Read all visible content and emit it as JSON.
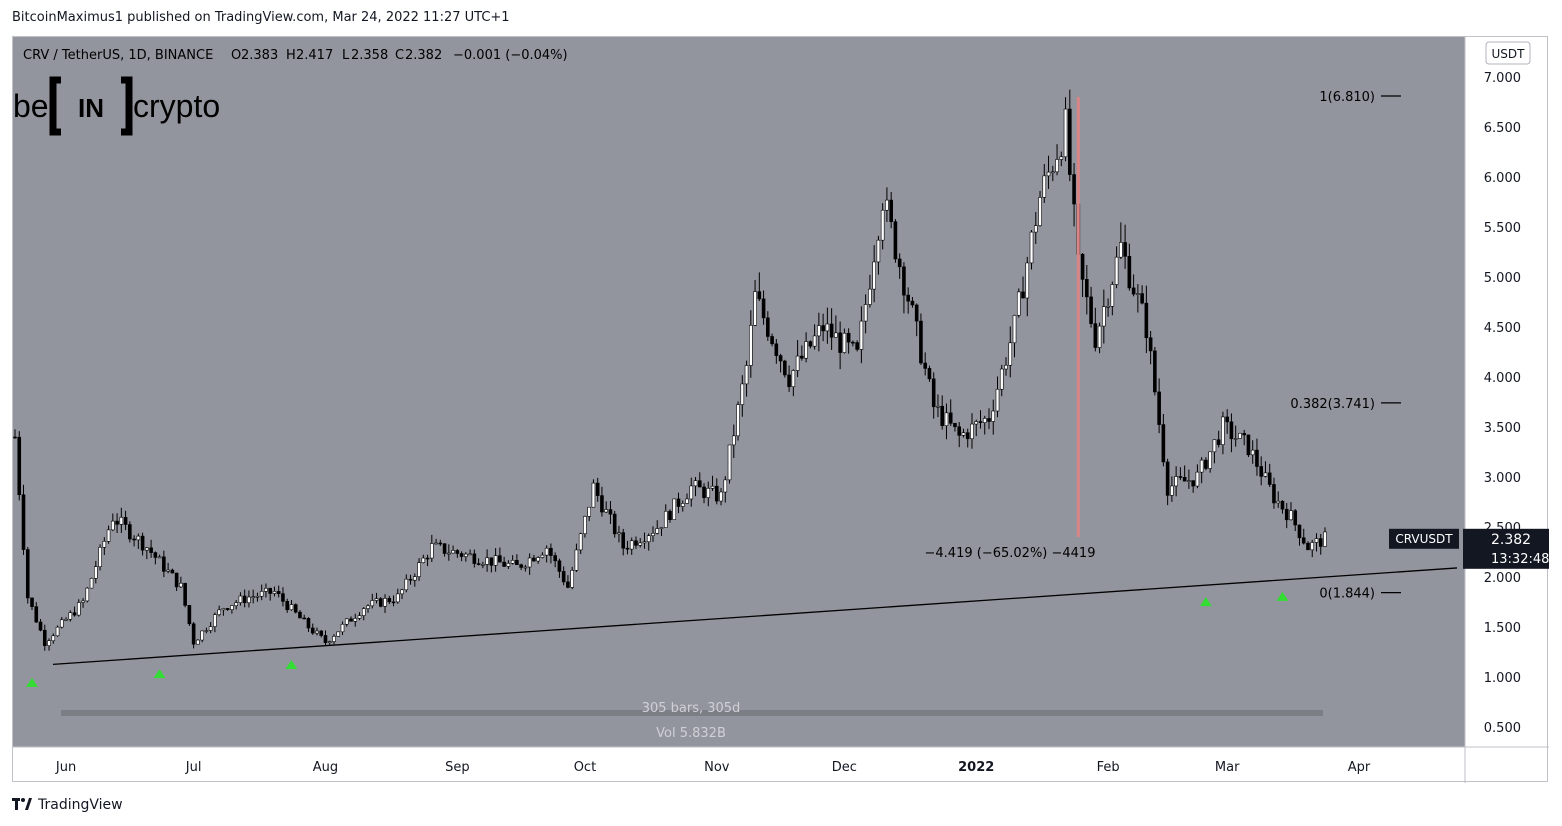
{
  "publisher_line": "BitcoinMaximus1 published on TradingView.com, Mar 24, 2022 11:27 UTC+1",
  "footer": {
    "logo_icon": "tradingview-logo-icon",
    "brand": "TradingView"
  },
  "logo": {
    "left": "be",
    "mid": "IN",
    "right": "crypto"
  },
  "colors": {
    "background": "#93959e",
    "candle_up": "#ffffff",
    "candle_down": "#000000",
    "wick": "#000000",
    "support_line": "#000000",
    "arrow": "#33dd33",
    "red_line": "#d98585",
    "price_label_bg": "#131722",
    "price_label_text": "#ffffff"
  },
  "legend": {
    "symbol": "CRV / TetherUS, 1D, BINANCE",
    "o_label": "O",
    "o": "2.383",
    "h_label": "H",
    "h": "2.417",
    "l_label": "L",
    "l": "2.358",
    "c_label": "C",
    "c": "2.382",
    "change": "−0.001 (−0.04%)"
  },
  "currency_badge": "USDT",
  "price_label": {
    "symbol": "CRVUSDT",
    "price": "2.382",
    "countdown": "13:32:48"
  },
  "stats": {
    "bars": "305 bars, 305d",
    "volume": "Vol 5.832B"
  },
  "measure_label": "−4.419 (−65.02%) −4419",
  "fib_labels": [
    {
      "label": "1(6.810)",
      "value": 6.81
    },
    {
      "label": "0.382(3.741)",
      "value": 3.741
    },
    {
      "label": "0(1.844)",
      "value": 1.844
    }
  ],
  "chart_data": {
    "type": "candlestick",
    "symbol": "CRVUSDT",
    "interval": "1D",
    "exchange": "BINANCE",
    "ylim": [
      0.3,
      7.4
    ],
    "scale": "linear",
    "grid": false,
    "y_ticks": [
      "0.500",
      "1.000",
      "1.500",
      "2.000",
      "2.500",
      "3.000",
      "3.500",
      "4.000",
      "4.500",
      "5.000",
      "5.500",
      "6.000",
      "6.500",
      "7.000"
    ],
    "y_tick_values": [
      0.5,
      1.0,
      1.5,
      2.0,
      2.5,
      3.0,
      3.5,
      4.0,
      4.5,
      5.0,
      5.5,
      6.0,
      6.5,
      7.0
    ],
    "x_ticks": [
      {
        "label": "Jun",
        "date": "2021-06-01"
      },
      {
        "label": "Jul",
        "date": "2021-07-01"
      },
      {
        "label": "Aug",
        "date": "2021-08-01"
      },
      {
        "label": "Sep",
        "date": "2021-09-01"
      },
      {
        "label": "Oct",
        "date": "2021-10-01"
      },
      {
        "label": "Nov",
        "date": "2021-11-01"
      },
      {
        "label": "Dec",
        "date": "2021-12-01"
      },
      {
        "label": "2022",
        "date": "2022-01-01",
        "bold": true
      },
      {
        "label": "Feb",
        "date": "2022-02-01"
      },
      {
        "label": "Mar",
        "date": "2022-03-01"
      },
      {
        "label": "Apr",
        "date": "2022-04-01"
      }
    ],
    "date_range": [
      "2021-05-20",
      "2022-03-24"
    ],
    "close_path": [
      {
        "date": "2021-05-20",
        "close": 3.4
      },
      {
        "date": "2021-05-23",
        "close": 1.8
      },
      {
        "date": "2021-05-27",
        "close": 1.35
      },
      {
        "date": "2021-06-05",
        "close": 1.75
      },
      {
        "date": "2021-06-12",
        "close": 2.6
      },
      {
        "date": "2021-06-20",
        "close": 2.3
      },
      {
        "date": "2021-06-28",
        "close": 1.9
      },
      {
        "date": "2021-07-01",
        "close": 1.35
      },
      {
        "date": "2021-07-08",
        "close": 1.7
      },
      {
        "date": "2021-07-14",
        "close": 1.8
      },
      {
        "date": "2021-07-20",
        "close": 1.85
      },
      {
        "date": "2021-07-28",
        "close": 1.5
      },
      {
        "date": "2021-08-01",
        "close": 1.35
      },
      {
        "date": "2021-08-10",
        "close": 1.7
      },
      {
        "date": "2021-08-18",
        "close": 1.8
      },
      {
        "date": "2021-08-26",
        "close": 2.3
      },
      {
        "date": "2021-09-05",
        "close": 2.2
      },
      {
        "date": "2021-09-15",
        "close": 2.1
      },
      {
        "date": "2021-09-22",
        "close": 2.3
      },
      {
        "date": "2021-09-27",
        "close": 1.9
      },
      {
        "date": "2021-10-03",
        "close": 2.9
      },
      {
        "date": "2021-10-10",
        "close": 2.3
      },
      {
        "date": "2021-10-18",
        "close": 2.5
      },
      {
        "date": "2021-10-26",
        "close": 2.9
      },
      {
        "date": "2021-11-02",
        "close": 2.8
      },
      {
        "date": "2021-11-08",
        "close": 4.1
      },
      {
        "date": "2021-11-10",
        "close": 4.8
      },
      {
        "date": "2021-11-18",
        "close": 4.0
      },
      {
        "date": "2021-11-26",
        "close": 4.5
      },
      {
        "date": "2021-12-04",
        "close": 4.2
      },
      {
        "date": "2021-12-10",
        "close": 5.8
      },
      {
        "date": "2021-12-16",
        "close": 4.8
      },
      {
        "date": "2021-12-22",
        "close": 3.7
      },
      {
        "date": "2021-12-28",
        "close": 3.4
      },
      {
        "date": "2022-01-04",
        "close": 3.6
      },
      {
        "date": "2022-01-10",
        "close": 4.5
      },
      {
        "date": "2022-01-16",
        "close": 5.8
      },
      {
        "date": "2022-01-22",
        "close": 6.5
      },
      {
        "date": "2022-01-25",
        "close": 5.1
      },
      {
        "date": "2022-01-29",
        "close": 4.4
      },
      {
        "date": "2022-02-04",
        "close": 5.3
      },
      {
        "date": "2022-02-10",
        "close": 4.5
      },
      {
        "date": "2022-02-15",
        "close": 2.9
      },
      {
        "date": "2022-02-22",
        "close": 3.0
      },
      {
        "date": "2022-02-28",
        "close": 3.5
      },
      {
        "date": "2022-03-06",
        "close": 3.3
      },
      {
        "date": "2022-03-12",
        "close": 2.8
      },
      {
        "date": "2022-03-16",
        "close": 2.6
      },
      {
        "date": "2022-03-20",
        "close": 2.3
      },
      {
        "date": "2022-03-24",
        "close": 2.382
      }
    ],
    "support_line": [
      {
        "date": "2021-05-20",
        "value": 1.1
      },
      {
        "date": "2022-03-24",
        "value": 2.0
      }
    ],
    "bounce_markers": [
      "2021-05-24",
      "2021-06-23",
      "2021-07-24",
      "2022-02-24",
      "2022-03-14"
    ],
    "vertical_marker_date": "2022-01-25",
    "fib_levels": [
      {
        "ratio": 1.0,
        "value": 6.81
      },
      {
        "ratio": 0.382,
        "value": 3.741
      },
      {
        "ratio": 0.0,
        "value": 1.844
      }
    ]
  }
}
